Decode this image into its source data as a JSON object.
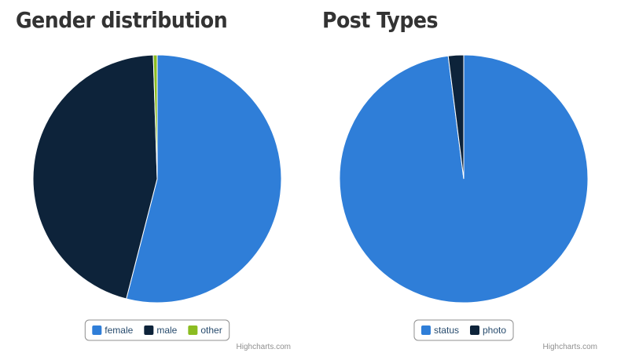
{
  "chart_data": [
    {
      "type": "pie",
      "title": "Gender distribution",
      "credits": "Highcharts.com",
      "series": [
        {
          "name": "female",
          "color": "#2f7ed8",
          "values": [
            54
          ]
        },
        {
          "name": "male",
          "color": "#0d233a",
          "values": [
            45.5
          ]
        },
        {
          "name": "other",
          "color": "#8bbc21",
          "values": [
            0.5
          ]
        }
      ]
    },
    {
      "type": "pie",
      "title": "Post Types",
      "credits": "Highcharts.com",
      "series": [
        {
          "name": "status",
          "color": "#2f7ed8",
          "values": [
            98
          ]
        },
        {
          "name": "photo",
          "color": "#0d233a",
          "values": [
            2
          ]
        }
      ]
    }
  ]
}
